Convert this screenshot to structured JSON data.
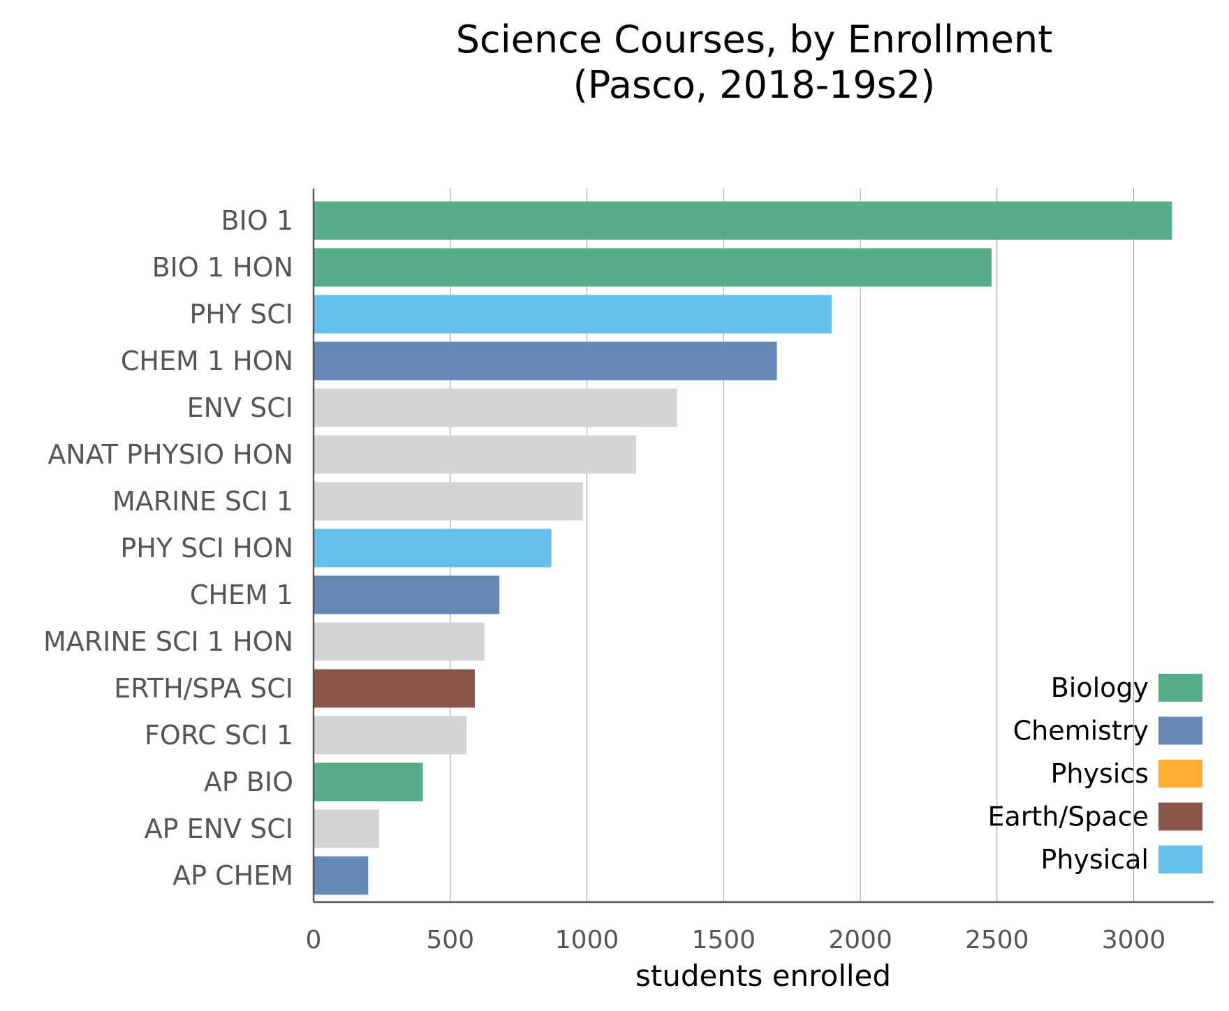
{
  "chart_data": {
    "type": "bar",
    "orientation": "horizontal",
    "title_lines": [
      "Science Courses, by Enrollment",
      "(Pasco, 2018-19s2)"
    ],
    "xlabel": "students enrolled",
    "ylabel": "",
    "xlim": [
      0,
      3300
    ],
    "xticks": [
      0,
      500,
      1000,
      1500,
      2000,
      2500,
      3000
    ],
    "grid": "vertical",
    "categories": [
      "BIO 1",
      "BIO 1 HON",
      "PHY SCI",
      "CHEM 1 HON",
      "ENV SCI",
      "ANAT PHYSIO HON",
      "MARINE SCI 1",
      "PHY SCI HON",
      "CHEM 1",
      "MARINE SCI 1 HON",
      "ERTH/SPA SCI",
      "FORC SCI 1",
      "AP BIO",
      "AP ENV SCI",
      "AP CHEM"
    ],
    "values": [
      3140,
      2480,
      1895,
      1695,
      1330,
      1180,
      985,
      870,
      680,
      625,
      590,
      560,
      400,
      240,
      200
    ],
    "bar_groups": [
      "Biology",
      "Biology",
      "Physical",
      "Chemistry",
      "Other",
      "Other",
      "Other",
      "Physical",
      "Chemistry",
      "Other",
      "Earth/Space",
      "Other",
      "Biology",
      "Other",
      "Chemistry"
    ],
    "group_colors": {
      "Biology": "#55ac89",
      "Chemistry": "#6589b4",
      "Physics": "#ffae35",
      "Earth/Space": "#8b574c",
      "Physical": "#64bfed",
      "Other": "#d4d4d4"
    },
    "legend": {
      "placement": "bottom-right",
      "entries": [
        {
          "name": "Biology",
          "color": "#55ac89"
        },
        {
          "name": "Chemistry",
          "color": "#6589b4"
        },
        {
          "name": "Physics",
          "color": "#ffae35"
        },
        {
          "name": "Earth/Space",
          "color": "#8b574c"
        },
        {
          "name": "Physical",
          "color": "#64bfed"
        }
      ]
    }
  }
}
